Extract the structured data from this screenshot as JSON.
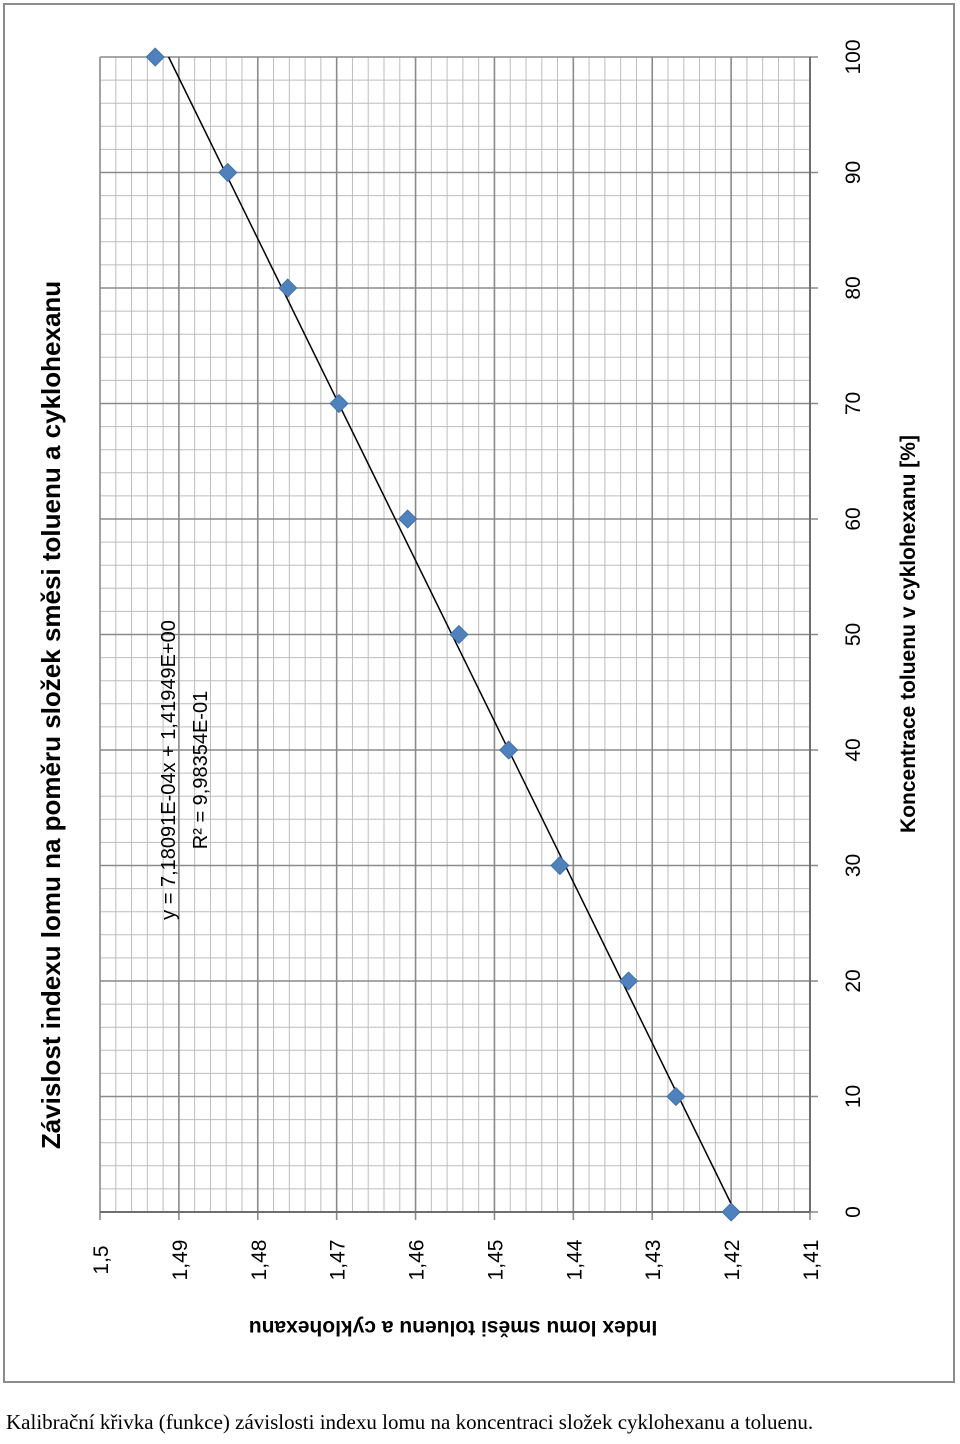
{
  "chart_data": {
    "type": "scatter",
    "title": "Závislost indexu lomu na poměru složek směsi toluenu a cyklohexanu",
    "xlabel": "Koncentrace toluenu v cyklohexanu [%]",
    "ylabel": "Index lomu směsi toluenu a cyklohexanu",
    "xlim": [
      0,
      100
    ],
    "ylim": [
      1.41,
      1.5
    ],
    "x_ticks": [
      "0",
      "10",
      "20",
      "30",
      "40",
      "50",
      "60",
      "70",
      "80",
      "90",
      "100"
    ],
    "y_ticks": [
      "1,41",
      "1,42",
      "1,43",
      "1,44",
      "1,45",
      "1,46",
      "1,47",
      "1,48",
      "1,49",
      "1,5"
    ],
    "grid": true,
    "orientation": "rotated 90° counter-clockwise",
    "series": [
      {
        "x": [
          0,
          10,
          20,
          30,
          40,
          50,
          60,
          70,
          80,
          90,
          100
        ],
        "y": [
          1.42,
          1.427,
          1.433,
          1.4417,
          1.4482,
          1.4545,
          1.461,
          1.4697,
          1.4762,
          1.4838,
          1.493
        ],
        "color": "#4f81bd",
        "marker": "diamond"
      }
    ],
    "trendline": {
      "equation": "y = 7,18091E-04x + 1,41949E+00",
      "r_squared": "R² = 9,98354E-01",
      "slope": 0.000718091,
      "intercept": 1.41949,
      "color": "#000000"
    }
  },
  "caption": "Kalibrační křivka (funkce) závislosti indexu lomu na koncentraci složek cyklohexanu a toluenu."
}
